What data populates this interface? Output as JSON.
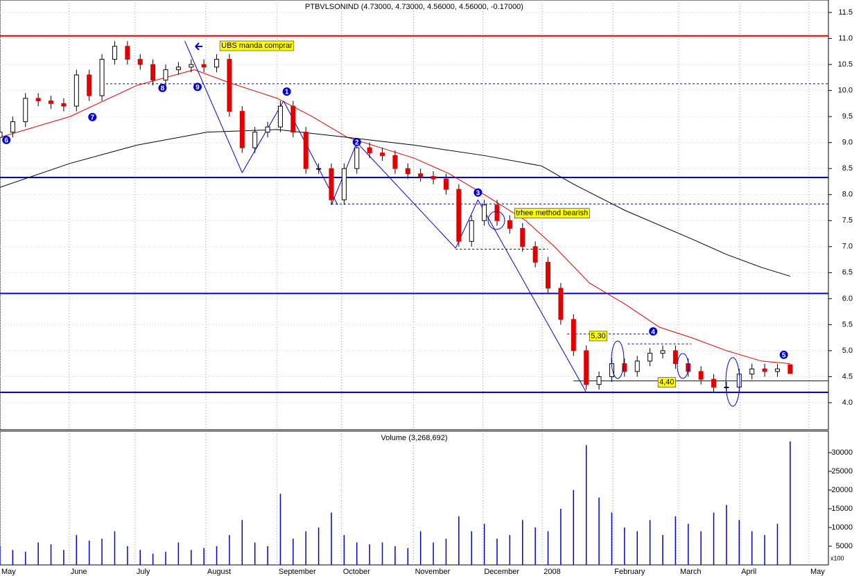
{
  "chart_data": [
    {
      "type": "candlestick",
      "title": "PTBVLSONIND (4.73000, 4.73000, 4.56000, 4.56000, -0.17000)",
      "x": [
        0,
        4,
        8,
        12,
        16,
        20,
        24,
        28,
        32,
        36,
        40,
        44,
        48,
        52,
        56,
        60,
        64,
        68,
        72,
        76,
        80,
        84,
        88,
        92,
        96,
        100,
        104,
        108,
        112,
        116,
        120,
        124,
        128,
        132,
        136,
        140,
        144,
        148,
        152,
        156,
        160,
        164,
        168,
        172,
        176,
        180,
        184,
        188,
        192,
        196,
        200,
        204,
        208,
        212,
        216,
        220,
        224,
        228,
        232,
        236,
        240,
        244,
        248
      ],
      "open": [
        9.1,
        9.2,
        9.4,
        9.85,
        9.8,
        9.75,
        9.7,
        10.3,
        9.9,
        10.6,
        10.85,
        10.6,
        10.5,
        10.2,
        10.4,
        10.45,
        10.5,
        10.45,
        10.6,
        9.6,
        8.9,
        9.2,
        9.3,
        9.7,
        9.2,
        8.5,
        8.5,
        7.9,
        8.5,
        8.9,
        8.8,
        8.75,
        8.5,
        8.4,
        8.35,
        8.3,
        8.1,
        7.1,
        7.5,
        7.8,
        7.5,
        7.35,
        7.0,
        6.7,
        6.2,
        5.6,
        5.0,
        4.35,
        4.5,
        4.75,
        4.6,
        4.8,
        4.95,
        5.0,
        4.75,
        4.6,
        4.45,
        4.3,
        4.3,
        4.55,
        4.65,
        4.6,
        4.73
      ],
      "high": [
        9.3,
        9.5,
        9.95,
        9.95,
        9.9,
        9.85,
        10.4,
        10.4,
        10.7,
        10.95,
        10.95,
        10.7,
        10.6,
        10.5,
        10.55,
        10.6,
        10.6,
        10.7,
        10.7,
        9.7,
        9.3,
        9.4,
        9.8,
        9.8,
        9.3,
        8.6,
        8.6,
        8.6,
        9.0,
        9.0,
        8.9,
        8.85,
        8.6,
        8.5,
        8.45,
        8.4,
        8.2,
        7.6,
        7.9,
        7.9,
        7.6,
        7.45,
        7.1,
        6.8,
        6.3,
        5.7,
        5.1,
        4.6,
        4.85,
        4.85,
        4.9,
        5.05,
        5.1,
        5.1,
        4.85,
        4.7,
        4.55,
        4.4,
        4.65,
        4.75,
        4.75,
        4.75,
        4.73
      ],
      "low": [
        9.0,
        9.1,
        9.3,
        9.7,
        9.65,
        9.6,
        9.6,
        9.8,
        9.8,
        10.5,
        10.5,
        10.4,
        10.1,
        10.1,
        10.3,
        10.35,
        10.35,
        10.35,
        9.5,
        8.8,
        8.8,
        9.1,
        9.2,
        9.1,
        8.4,
        8.4,
        7.8,
        7.8,
        8.4,
        8.7,
        8.65,
        8.4,
        8.3,
        8.25,
        8.2,
        8.0,
        7.0,
        7.0,
        7.4,
        7.4,
        7.25,
        6.9,
        6.6,
        6.1,
        5.5,
        4.9,
        4.25,
        4.25,
        4.4,
        4.5,
        4.5,
        4.7,
        4.85,
        4.65,
        4.5,
        4.35,
        4.2,
        4.2,
        4.2,
        4.45,
        4.5,
        4.5,
        4.56
      ],
      "close": [
        9.2,
        9.4,
        9.85,
        9.8,
        9.75,
        9.7,
        10.3,
        9.9,
        10.6,
        10.85,
        10.6,
        10.5,
        10.2,
        10.4,
        10.45,
        10.5,
        10.45,
        10.6,
        9.6,
        8.9,
        9.2,
        9.3,
        9.7,
        9.2,
        8.5,
        8.5,
        7.9,
        8.5,
        8.9,
        8.8,
        8.75,
        8.5,
        8.4,
        8.35,
        8.3,
        8.1,
        7.1,
        7.5,
        7.8,
        7.5,
        7.35,
        7.0,
        6.7,
        6.2,
        5.6,
        5.0,
        4.35,
        4.5,
        4.75,
        4.6,
        4.8,
        4.95,
        5.0,
        4.75,
        4.6,
        4.45,
        4.3,
        4.3,
        4.55,
        4.65,
        4.6,
        4.65,
        4.56
      ],
      "up_color": "#ffffff",
      "down_color": "#e00000",
      "xlim": [
        0,
        260
      ],
      "ylim": [
        3.48,
        11.74
      ],
      "yticks": [
        {
          "value": 4,
          "label": "4.0"
        },
        4.5,
        {
          "value": 5,
          "label": "5.0"
        },
        5.5,
        {
          "value": 6,
          "label": "6.0"
        },
        6.5,
        {
          "value": 7,
          "label": "7.0"
        },
        7.5,
        {
          "value": 8,
          "label": "8.0"
        },
        8.5,
        {
          "value": 9,
          "label": "9.0"
        },
        9.5,
        {
          "value": 10,
          "label": "10.0"
        },
        10.5,
        {
          "value": 11,
          "label": "11.0"
        },
        11.5
      ],
      "xticks": [
        {
          "value": 0,
          "label": "May"
        },
        {
          "value": 21.7,
          "label": "June"
        },
        {
          "value": 42.4,
          "label": "July"
        },
        {
          "value": 64.6,
          "label": "August"
        },
        {
          "value": 87,
          "label": "September"
        },
        {
          "value": 107.2,
          "label": "October"
        },
        {
          "value": 129.8,
          "label": "November"
        },
        {
          "value": 151.5,
          "label": "December"
        },
        {
          "value": 170.2,
          "label": "2008"
        },
        {
          "value": 192.4,
          "label": "February"
        },
        {
          "value": 213,
          "label": "March"
        },
        {
          "value": 232.2,
          "label": "April"
        },
        {
          "value": 253.9,
          "label": "May"
        }
      ],
      "grid": true,
      "overlays": [
        {
          "color": "#e00000",
          "x": [
            0,
            22,
            43,
            61,
            72,
            87,
            98,
            109,
            130,
            141,
            152,
            165,
            174,
            185,
            196,
            207,
            217,
            228,
            239,
            248
          ],
          "values": [
            9.1,
            9.5,
            10.1,
            10.4,
            10.15,
            9.85,
            9.5,
            9.1,
            8.7,
            8.4,
            8.0,
            7.5,
            7.0,
            6.3,
            5.9,
            5.45,
            5.25,
            5.0,
            4.8,
            4.75
          ]
        },
        {
          "color": "#000000",
          "x": [
            0,
            22,
            43,
            65,
            87,
            109,
            130,
            152,
            170,
            180,
            196,
            217,
            228,
            239,
            248
          ],
          "values": [
            8.14,
            8.6,
            8.95,
            9.2,
            9.25,
            9.1,
            8.95,
            8.75,
            8.55,
            8.2,
            7.7,
            7.15,
            6.85,
            6.6,
            6.43
          ]
        }
      ],
      "hlines": [
        {
          "value": 11.05,
          "color": "#e00000",
          "style": "solid"
        },
        {
          "value": 8.33,
          "color": "#0000cc",
          "style": "solid"
        },
        {
          "value": 6.1,
          "color": "#0000cc",
          "style": "solid"
        },
        {
          "value": 4.2,
          "color": "#0000cc",
          "style": "solid"
        },
        {
          "value": 4.42,
          "color": "#0000cc",
          "style": "thin",
          "from": 180,
          "to": 260
        },
        {
          "value": 10.13,
          "color": "#000080",
          "style": "dotted",
          "from": 32,
          "to": 260
        },
        {
          "value": 7.82,
          "color": "#000080",
          "style": "dotted",
          "from": 104,
          "to": 260
        },
        {
          "value": 6.95,
          "color": "#000080",
          "style": "dotted",
          "from": 143,
          "to": 172
        },
        {
          "value": 5.32,
          "color": "#000080",
          "style": "dotted",
          "from": 178,
          "to": 205
        },
        {
          "value": 5.13,
          "color": "#000080",
          "style": "dotted",
          "from": 197,
          "to": 217
        }
      ],
      "trendlines": [
        [
          [
            58,
            10.95
          ],
          [
            76,
            8.42
          ],
          [
            89,
            9.8
          ],
          [
            106,
            7.8
          ]
        ],
        [
          [
            104,
            7.8
          ],
          [
            112,
            9.0
          ],
          [
            143,
            6.97
          ],
          [
            150,
            7.9
          ],
          [
            184,
            4.2
          ]
        ]
      ],
      "waves": [
        {
          "label": "6",
          "x": 2,
          "y": 9.05
        },
        {
          "label": "7",
          "x": 29,
          "y": 9.49
        },
        {
          "label": "8",
          "x": 51,
          "y": 10.05
        },
        {
          "label": "9",
          "x": 62,
          "y": 10.07
        },
        {
          "label": "1",
          "x": 90,
          "y": 9.98
        },
        {
          "label": "2",
          "x": 112,
          "y": 9.01
        },
        {
          "label": "3",
          "x": 150,
          "y": 8.04
        },
        {
          "label": "4",
          "x": 205,
          "y": 5.37
        },
        {
          "label": "5",
          "x": 246,
          "y": 4.92
        }
      ],
      "annotations": [
        {
          "text": "UBS manda comprar",
          "x": 69,
          "y": 10.86
        },
        {
          "text": "trhee method bearish",
          "x": 161.5,
          "y": 7.64
        },
        {
          "text": "5,30",
          "x": 185,
          "y": 5.28
        },
        {
          "text": "4,40",
          "x": 206.5,
          "y": 4.39
        }
      ]
    },
    {
      "type": "bar",
      "title": "Volume (3,268,692)",
      "x": [
        0,
        4,
        8,
        12,
        16,
        20,
        24,
        28,
        32,
        36,
        40,
        44,
        48,
        52,
        56,
        60,
        64,
        68,
        72,
        76,
        80,
        84,
        88,
        92,
        96,
        100,
        104,
        108,
        112,
        116,
        120,
        124,
        128,
        132,
        136,
        140,
        144,
        148,
        152,
        156,
        160,
        164,
        168,
        172,
        176,
        180,
        184,
        188,
        192,
        196,
        200,
        204,
        208,
        212,
        216,
        220,
        224,
        228,
        232,
        236,
        240,
        244,
        248
      ],
      "values": [
        5000,
        4000,
        3500,
        6000,
        5500,
        4000,
        8000,
        6500,
        7000,
        9000,
        5000,
        4000,
        3000,
        3500,
        6000,
        4000,
        4500,
        5000,
        8000,
        12000,
        6000,
        5000,
        19000,
        7000,
        9000,
        10000,
        14000,
        8000,
        6000,
        5500,
        6000,
        5000,
        4500,
        9000,
        6000,
        7000,
        13000,
        9000,
        11000,
        7000,
        8000,
        12000,
        10000,
        9000,
        15000,
        20000,
        32000,
        18000,
        14000,
        10000,
        9000,
        12000,
        8000,
        13000,
        11000,
        9000,
        14000,
        16000,
        12000,
        9000,
        8000,
        11000,
        33000
      ],
      "color": "#0000cc",
      "xlim": [
        0,
        260
      ],
      "ylim": [
        0,
        35740
      ],
      "yticks": [
        5000,
        10000,
        15000,
        20000,
        25000,
        30000
      ],
      "scale_label": "x100"
    }
  ]
}
